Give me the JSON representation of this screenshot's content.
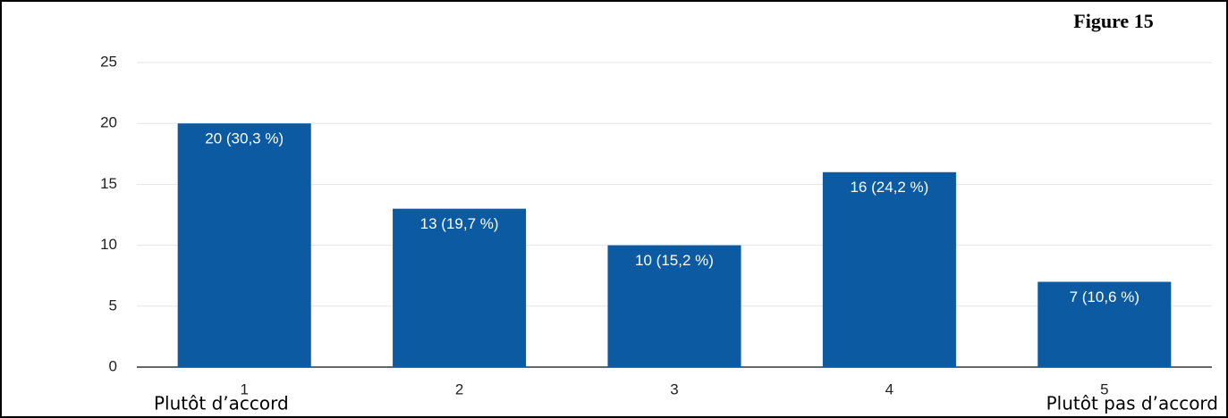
{
  "chart_data": {
    "type": "bar",
    "categories": [
      "1",
      "2",
      "3",
      "4",
      "5"
    ],
    "values": [
      20,
      13,
      10,
      16,
      7
    ],
    "value_labels": [
      "20 (30,3 %)",
      "13 (19,7 %)",
      "10 (15,2 %)",
      "16 (24,2 %)",
      "7 (10,6 %)"
    ],
    "color": "#0b5aa2",
    "ylim": [
      0,
      25
    ],
    "yticks": [
      0,
      5,
      10,
      15,
      20,
      25
    ],
    "grid": true,
    "annotations": [
      "Figure 15",
      "Plutôt d’accord",
      "Plutôt pas d’accord"
    ]
  }
}
